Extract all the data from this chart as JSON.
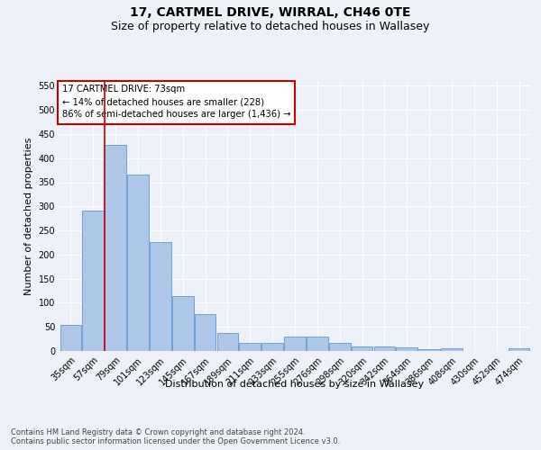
{
  "title": "17, CARTMEL DRIVE, WIRRAL, CH46 0TE",
  "subtitle": "Size of property relative to detached houses in Wallasey",
  "xlabel": "Distribution of detached houses by size in Wallasey",
  "ylabel": "Number of detached properties",
  "categories": [
    "35sqm",
    "57sqm",
    "79sqm",
    "101sqm",
    "123sqm",
    "145sqm",
    "167sqm",
    "189sqm",
    "211sqm",
    "233sqm",
    "255sqm",
    "276sqm",
    "298sqm",
    "320sqm",
    "342sqm",
    "364sqm",
    "386sqm",
    "408sqm",
    "430sqm",
    "452sqm",
    "474sqm"
  ],
  "values": [
    55,
    292,
    428,
    365,
    226,
    113,
    76,
    38,
    17,
    17,
    29,
    29,
    17,
    10,
    10,
    8,
    4,
    5,
    0,
    0,
    5
  ],
  "bar_color": "#aec6e8",
  "bar_edge_color": "#5b9bd5",
  "vline_color": "#cc0000",
  "vline_x": 1.5,
  "annotation_text": "17 CARTMEL DRIVE: 73sqm\n← 14% of detached houses are smaller (228)\n86% of semi-detached houses are larger (1,436) →",
  "annotation_box_color": "#ffffff",
  "annotation_box_edge_color": "#cc0000",
  "ylim": [
    0,
    560
  ],
  "yticks": [
    0,
    50,
    100,
    150,
    200,
    250,
    300,
    350,
    400,
    450,
    500,
    550
  ],
  "footer_text": "Contains HM Land Registry data © Crown copyright and database right 2024.\nContains public sector information licensed under the Open Government Licence v3.0.",
  "bg_color": "#eef2f8",
  "plot_bg_color": "#eef2f8",
  "grid_color": "#ffffff",
  "title_fontsize": 10,
  "subtitle_fontsize": 9,
  "axis_label_fontsize": 8,
  "tick_fontsize": 7,
  "footer_fontsize": 6
}
